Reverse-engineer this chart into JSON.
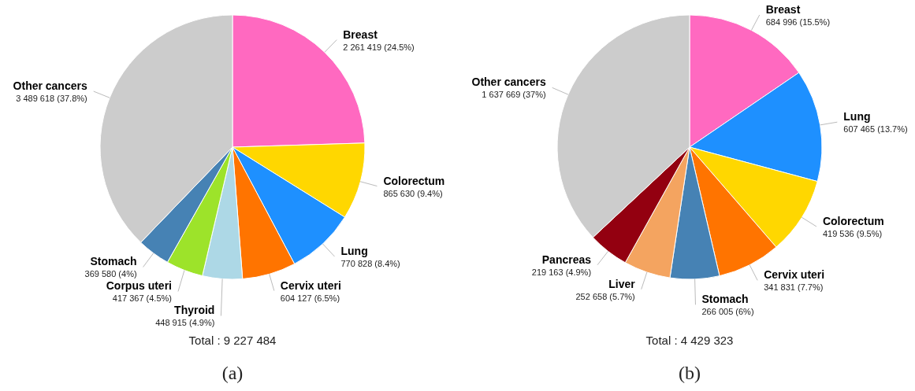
{
  "chart_data": [
    {
      "type": "pie",
      "categories": [
        "Breast",
        "Colorectum",
        "Lung",
        "Cervix uteri",
        "Thyroid",
        "Corpus uteri",
        "Stomach",
        "Other cancers"
      ],
      "values": [
        2261419,
        865630,
        770828,
        604127,
        448915,
        417367,
        369580,
        3489618
      ],
      "colors": [
        "#ff69c0",
        "#ffd700",
        "#1e90ff",
        "#ff7400",
        "#add8e6",
        "#9de32a",
        "#4682b4",
        "#cccccc"
      ],
      "value_labels": [
        "2 261 419 (24.5%)",
        "865 630 (9.4%)",
        "770 828 (8.4%)",
        "604 127 (6.5%)",
        "448 915 (4.9%)",
        "417 367 (4.5%)",
        "369 580 (4%)",
        "3 489 618 (37.8%)"
      ],
      "annotations": [
        "Total : 9 227 484",
        "(a)"
      ]
    },
    {
      "type": "pie",
      "categories": [
        "Breast",
        "Lung",
        "Colorectum",
        "Cervix uteri",
        "Stomach",
        "Liver",
        "Pancreas",
        "Other cancers"
      ],
      "values": [
        684996,
        607465,
        419536,
        341831,
        266005,
        252658,
        219163,
        1637669
      ],
      "colors": [
        "#ff69c0",
        "#1e90ff",
        "#ffd700",
        "#ff7400",
        "#4682b4",
        "#f4a460",
        "#930010",
        "#cccccc"
      ],
      "value_labels": [
        "684 996 (15.5%)",
        "607 465 (13.7%)",
        "419 536 (9.5%)",
        "341 831 (7.7%)",
        "266 005 (6%)",
        "252 658 (5.7%)",
        "219 163 (4.9%)",
        "1 637 669 (37%)"
      ],
      "annotations": [
        "Total : 4 429 323",
        "(b)"
      ]
    }
  ]
}
